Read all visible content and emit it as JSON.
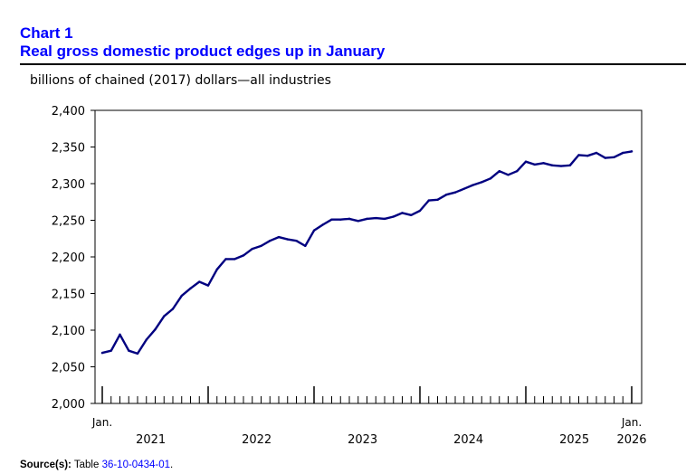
{
  "header": {
    "number": "Chart 1",
    "title": "Real gross domestic product edges up in January",
    "unit": "billions of chained (2017) dollars—all industries"
  },
  "source": {
    "label": "Source(s):",
    "prefix": "Table ",
    "table_id": "36-10-0434-01",
    "suffix": "."
  },
  "colors": {
    "line": "#000080",
    "title": "#0000ff",
    "axis": "#000000"
  },
  "chart_data": {
    "type": "line",
    "title": "Real gross domestic product edges up in January",
    "ylabel": "billions of chained (2017) dollars—all industries",
    "xlabel": "",
    "ylim": [
      2000,
      2400
    ],
    "yticks": [
      2000,
      2050,
      2100,
      2150,
      2200,
      2250,
      2300,
      2350,
      2400
    ],
    "ytick_labels": [
      "2,000",
      "2,050",
      "2,100",
      "2,150",
      "2,200",
      "2,250",
      "2,300",
      "2,350",
      "2,400"
    ],
    "year_labels": [
      {
        "label": "2021",
        "index": 5.5
      },
      {
        "label": "2022",
        "index": 17.5
      },
      {
        "label": "2023",
        "index": 29.5
      },
      {
        "label": "2024",
        "index": 41.5
      },
      {
        "label": "2025",
        "index": 53.5
      },
      {
        "label": "2026",
        "index": 60
      }
    ],
    "month_labels": [
      {
        "label": "Jan.",
        "index": 0
      },
      {
        "label": "Jan.",
        "index": 60
      }
    ],
    "grid": false,
    "series": [
      {
        "name": "All industries",
        "start": "2021-01",
        "end": "2026-01",
        "values": [
          2069,
          2072,
          2094,
          2072,
          2068,
          2087,
          2101,
          2119,
          2129,
          2147,
          2157,
          2166,
          2161,
          2183,
          2197,
          2197,
          2202,
          2211,
          2215,
          2222,
          2227,
          2224,
          2222,
          2215,
          2236,
          2244,
          2251,
          2251,
          2252,
          2249,
          2252,
          2253,
          2252,
          2255,
          2260,
          2257,
          2263,
          2277,
          2278,
          2285,
          2288,
          2293,
          2298,
          2302,
          2307,
          2317,
          2312,
          2317,
          2330,
          2326,
          2328,
          2325,
          2324,
          2325,
          2339,
          2338,
          2342,
          2335,
          2336,
          2342,
          2344
        ]
      }
    ]
  }
}
